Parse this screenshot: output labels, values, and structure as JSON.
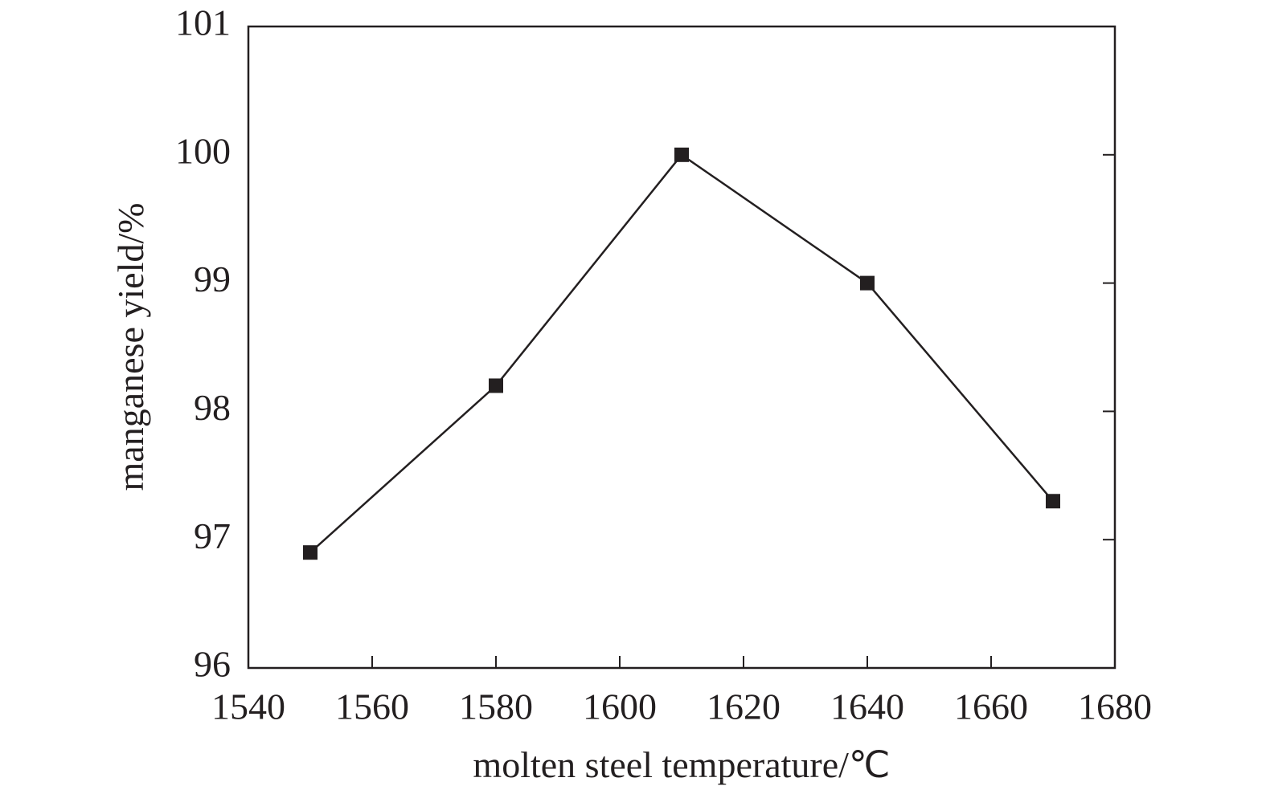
{
  "chart_data": {
    "type": "line",
    "x_label": "molten steel temperature/℃",
    "y_label": "manganese yield/%",
    "x": [
      1550,
      1580,
      1610,
      1640,
      1670
    ],
    "series": [
      {
        "values": [
          96.9,
          98.2,
          100.0,
          99.0,
          97.3
        ],
        "color": "#231f20",
        "marker": "square"
      }
    ],
    "xlim": [
      1540,
      1680
    ],
    "xticks": [
      1540,
      1560,
      1580,
      1600,
      1620,
      1640,
      1660,
      1680
    ],
    "ylim": [
      96,
      101
    ],
    "yticks": [
      96,
      97,
      98,
      99,
      100,
      101
    ],
    "grid": false
  }
}
